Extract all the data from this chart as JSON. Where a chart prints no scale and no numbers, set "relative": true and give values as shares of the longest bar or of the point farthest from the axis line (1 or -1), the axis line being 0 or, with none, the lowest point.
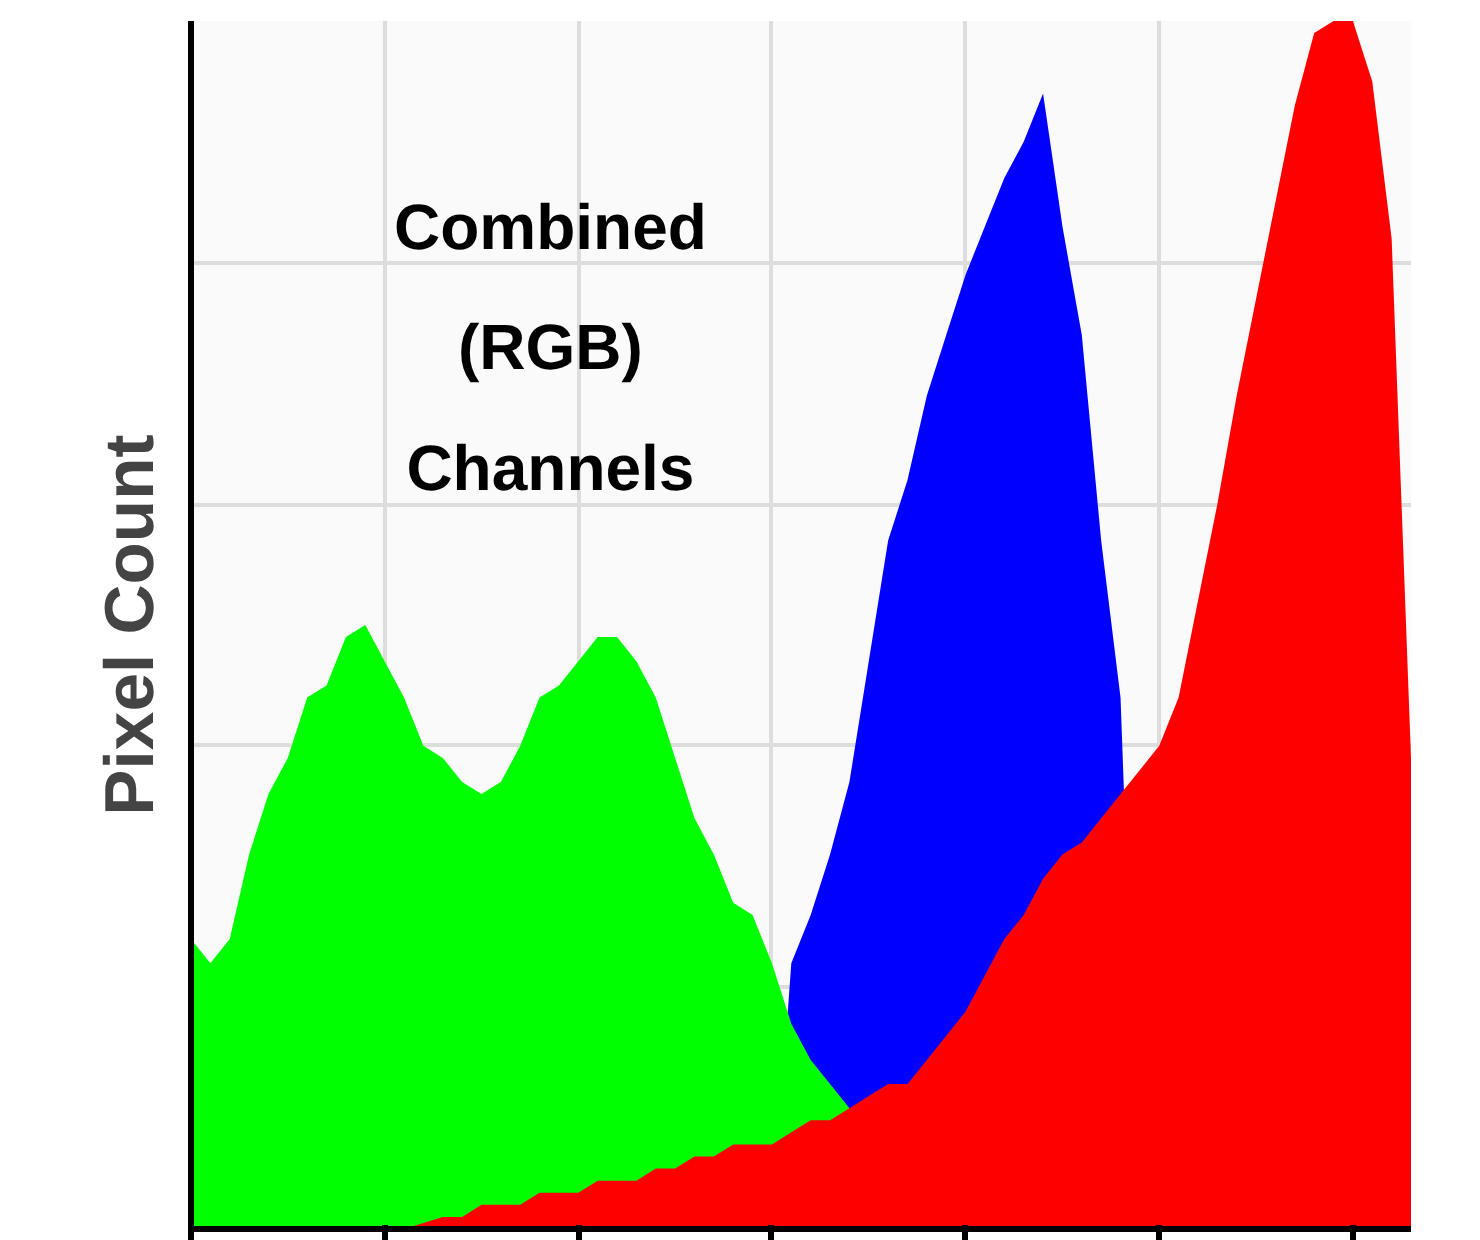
{
  "chart_data": {
    "type": "area",
    "relative": true,
    "title": "Combined (RGB) Channels",
    "ylabel": "Pixel Count",
    "grid": true,
    "tick_labels": false,
    "categories": [
      null,
      null,
      null,
      null,
      null,
      null,
      null,
      null,
      null,
      null,
      null,
      null,
      null,
      null,
      null,
      null,
      null,
      null,
      null,
      null,
      null,
      null,
      null,
      null,
      null,
      null,
      null,
      null,
      null,
      null,
      null,
      null,
      null,
      null,
      null,
      null,
      null,
      null,
      null,
      null,
      null,
      null,
      null,
      null,
      null,
      null,
      null,
      null,
      null,
      null,
      null,
      null,
      null,
      null,
      null,
      null,
      null,
      null,
      null,
      null,
      null,
      null,
      null,
      null
    ],
    "series": [
      {
        "color": "#0000ff",
        "values": [
          0,
          0,
          0,
          0,
          0,
          0,
          0,
          0,
          0,
          0,
          0,
          0,
          0,
          0,
          0,
          0,
          0,
          0,
          0,
          0,
          0,
          0,
          0,
          0,
          0,
          0,
          0,
          0,
          0,
          0,
          0,
          0.22,
          0.26,
          0.31,
          0.37,
          0.47,
          0.57,
          0.62,
          0.69,
          0.74,
          0.79,
          0.83,
          0.87,
          0.9,
          0.94,
          0.83,
          0.74,
          0.57,
          0.44,
          0,
          0,
          0,
          0,
          0,
          0,
          0,
          0,
          0,
          0,
          0,
          0,
          0,
          0,
          0
        ]
      },
      {
        "color": "#00ff00",
        "values": [
          0.24,
          0.22,
          0.24,
          0.31,
          0.36,
          0.39,
          0.44,
          0.45,
          0.49,
          0.5,
          0.47,
          0.44,
          0.4,
          0.39,
          0.37,
          0.36,
          0.37,
          0.4,
          0.44,
          0.45,
          0.47,
          0.49,
          0.49,
          0.47,
          0.44,
          0.39,
          0.34,
          0.31,
          0.27,
          0.26,
          0.22,
          0.17,
          0.14,
          0.12,
          null,
          null,
          null,
          null,
          null,
          0,
          0,
          0,
          0,
          0,
          0,
          0,
          0,
          0,
          0,
          0,
          0,
          0,
          0,
          0,
          0,
          0,
          0,
          0,
          0,
          0,
          0,
          0,
          0,
          0
        ]
      },
      {
        "color": "#ff0000",
        "values": [
          0,
          0,
          0,
          0,
          0,
          0,
          0,
          0,
          0,
          0,
          0,
          0,
          0.005,
          0.01,
          0.01,
          0.02,
          0.02,
          0.02,
          0.03,
          0.03,
          0.03,
          0.04,
          0.04,
          0.04,
          0.05,
          0.05,
          0.06,
          0.06,
          0.07,
          0.07,
          0.07,
          0.08,
          0.09,
          0.09,
          0.1,
          0.11,
          0.12,
          0.12,
          0.14,
          0.16,
          0.18,
          0.21,
          0.24,
          0.26,
          0.29,
          0.31,
          0.32,
          0.34,
          0.36,
          0.38,
          0.4,
          0.44,
          0.52,
          0.6,
          0.69,
          0.77,
          0.85,
          0.93,
          0.99,
          1.0,
          1.0,
          0.95,
          0.82,
          0.39
        ]
      }
    ]
  }
}
